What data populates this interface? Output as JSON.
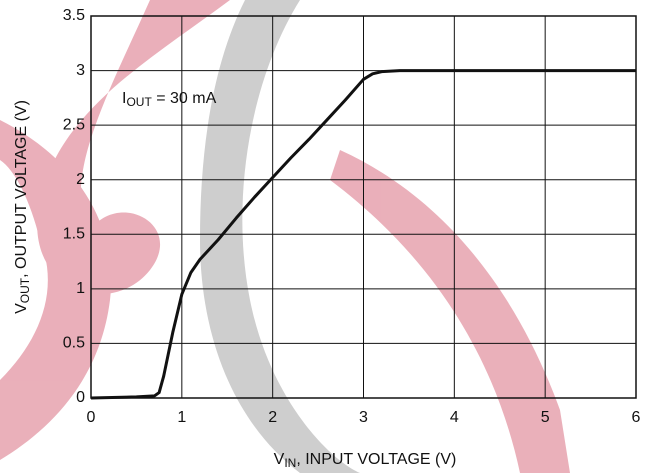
{
  "chart_data": {
    "type": "line",
    "x_label": [
      "V",
      "IN",
      ", INPUT VOLTAGE (V)"
    ],
    "y_label": [
      "V",
      "OUT",
      ", OUTPUT VOLTAGE (V)"
    ],
    "annotation": [
      "I",
      "OUT",
      " = 30 mA"
    ],
    "xlim": [
      0,
      6
    ],
    "xticks": [
      0,
      1,
      2,
      3,
      4,
      5,
      6
    ],
    "ylim": [
      0,
      3.5
    ],
    "yticks": [
      0,
      0.5,
      1,
      1.5,
      2,
      2.5,
      3,
      3.5
    ],
    "grid": true,
    "series": [
      {
        "color": "#111111",
        "x": [
          0,
          0.5,
          0.7,
          0.75,
          0.8,
          0.9,
          1.0,
          1.1,
          1.2,
          1.4,
          1.6,
          1.8,
          2.0,
          2.2,
          2.4,
          2.6,
          2.8,
          3.0,
          3.1,
          3.2,
          3.4,
          4,
          5,
          6
        ],
        "values": [
          0,
          0.01,
          0.02,
          0.05,
          0.2,
          0.6,
          0.95,
          1.15,
          1.27,
          1.45,
          1.65,
          1.84,
          2.02,
          2.2,
          2.37,
          2.55,
          2.73,
          2.92,
          2.97,
          2.99,
          3.0,
          3.0,
          3.0,
          3.0
        ]
      }
    ]
  }
}
